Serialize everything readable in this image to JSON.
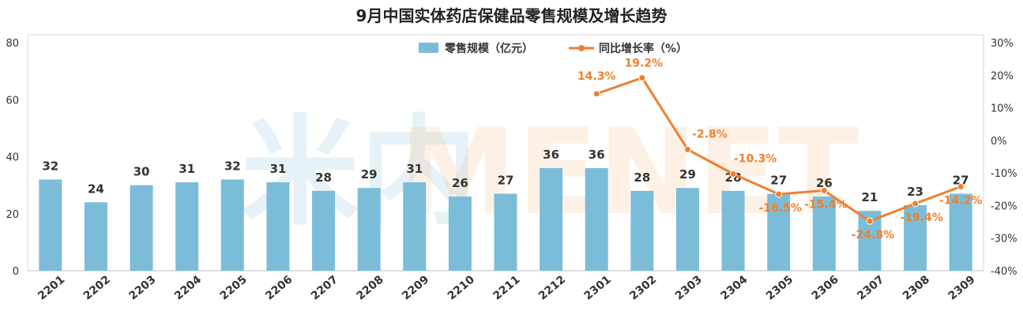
{
  "watermark": "米内MENET",
  "chart_data": {
    "type": "bar+line",
    "title": "9月中国实体药店保健品零售规模及增长趋势",
    "categories": [
      "2201",
      "2202",
      "2203",
      "2204",
      "2205",
      "2206",
      "2207",
      "2208",
      "2209",
      "2210",
      "2211",
      "2212",
      "2301",
      "2302",
      "2303",
      "2304",
      "2305",
      "2306",
      "2307",
      "2308",
      "2309"
    ],
    "series": [
      {
        "name": "零售规模（亿元）",
        "type": "bar",
        "axis": "left",
        "values": [
          32,
          24,
          30,
          31,
          32,
          31,
          28,
          29,
          31,
          26,
          27,
          36,
          36,
          28,
          29,
          28,
          27,
          26,
          21,
          23,
          27
        ],
        "labels": [
          "32",
          "24",
          "30",
          "31",
          "32",
          "31",
          "28",
          "29",
          "31",
          "26",
          "27",
          "36",
          "36",
          "28",
          "29",
          "28",
          "27",
          "26",
          "21",
          "23",
          "27"
        ],
        "color": "#7BBDD9"
      },
      {
        "name": "同比增长率（%）",
        "type": "line",
        "axis": "right",
        "values": [
          null,
          null,
          null,
          null,
          null,
          null,
          null,
          null,
          null,
          null,
          null,
          null,
          14.3,
          19.2,
          -2.8,
          -10.3,
          -16.5,
          -15.4,
          -24.8,
          -19.4,
          -14.2
        ],
        "labels": [
          "",
          "",
          "",
          "",
          "",
          "",
          "",
          "",
          "",
          "",
          "",
          "",
          "14.3%",
          "19.2%",
          "-2.8%",
          "-10.3%",
          "-16.5%",
          "-15.4%",
          "-24.8%",
          "-19.4%",
          "-14.2%"
        ],
        "color": "#F07F2E"
      }
    ],
    "left_axis": {
      "ylim": [
        0,
        80
      ],
      "ticks": [
        "0",
        "20",
        "40",
        "60",
        "80"
      ]
    },
    "right_axis": {
      "ylim": [
        -40,
        30
      ],
      "ticks": [
        "-40%",
        "-30%",
        "-20%",
        "-10%",
        "0%",
        "10%",
        "20%",
        "30%"
      ]
    },
    "legend_position": "top-center",
    "grid": false
  }
}
